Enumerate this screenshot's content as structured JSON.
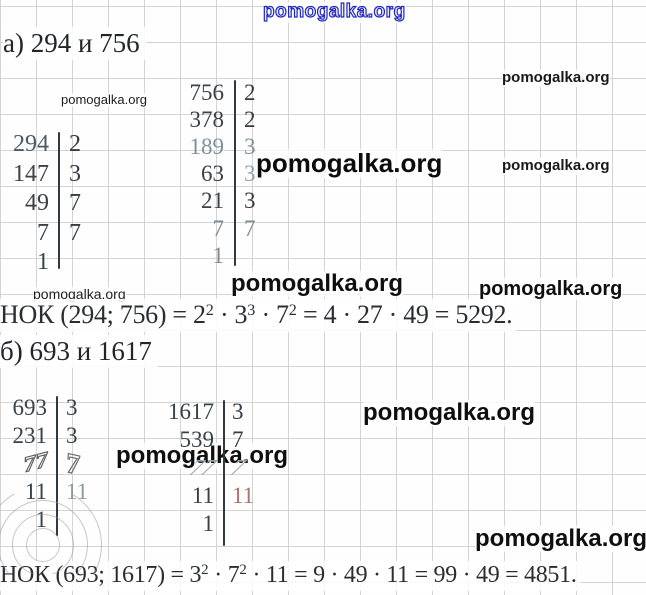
{
  "watermark": {
    "text": "pomogalka.org"
  },
  "colors": {
    "watermark_blue": "#2a2ec9",
    "ink": "#2e3338",
    "grid_line": "#d4d4d4",
    "paper": "#fefefe"
  },
  "sections": [
    {
      "label": "a",
      "heading": "а) 294 и 756",
      "tables": [
        {
          "number": "294",
          "rows": [
            [
              "294",
              "2"
            ],
            [
              "147",
              "3"
            ],
            [
              "49",
              "7"
            ],
            [
              "7",
              "7"
            ],
            [
              "1",
              ""
            ]
          ]
        },
        {
          "number": "756",
          "rows": [
            [
              "756",
              "2"
            ],
            [
              "378",
              "2"
            ],
            [
              "189",
              "3"
            ],
            [
              "63",
              "3"
            ],
            [
              "21",
              "3"
            ],
            [
              "7",
              "7"
            ],
            [
              "1",
              ""
            ]
          ]
        }
      ],
      "equation": [
        {
          "t": "НОК (294; 756) = 2"
        },
        {
          "t": "2",
          "sup": true
        },
        {
          "t": " · 3"
        },
        {
          "t": "3",
          "sup": true
        },
        {
          "t": " · 7"
        },
        {
          "t": "2",
          "sup": true
        },
        {
          "t": " = 4 · 27 · 49 = 5292."
        }
      ]
    },
    {
      "label": "b",
      "heading": "б) 693 и 1617",
      "tables": [
        {
          "number": "693",
          "rows": [
            [
              "693",
              "3"
            ],
            [
              "231",
              "3"
            ],
            [
              "77",
              "7"
            ],
            [
              "11",
              "11"
            ],
            [
              "1",
              ""
            ]
          ]
        },
        {
          "number": "1617",
          "rows": [
            [
              "1617",
              "3"
            ],
            [
              "539",
              "7"
            ],
            [
              "77",
              "7"
            ],
            [
              "11",
              "11"
            ],
            [
              "1",
              ""
            ]
          ]
        }
      ],
      "equation": [
        {
          "t": "НОК (693; 1617) = 3"
        },
        {
          "t": "2",
          "sup": true
        },
        {
          "t": " · 7"
        },
        {
          "t": "2",
          "sup": true
        },
        {
          "t": " · 11 = 9 · 49 · 11 = 99 · 49 = 4851."
        }
      ]
    }
  ]
}
